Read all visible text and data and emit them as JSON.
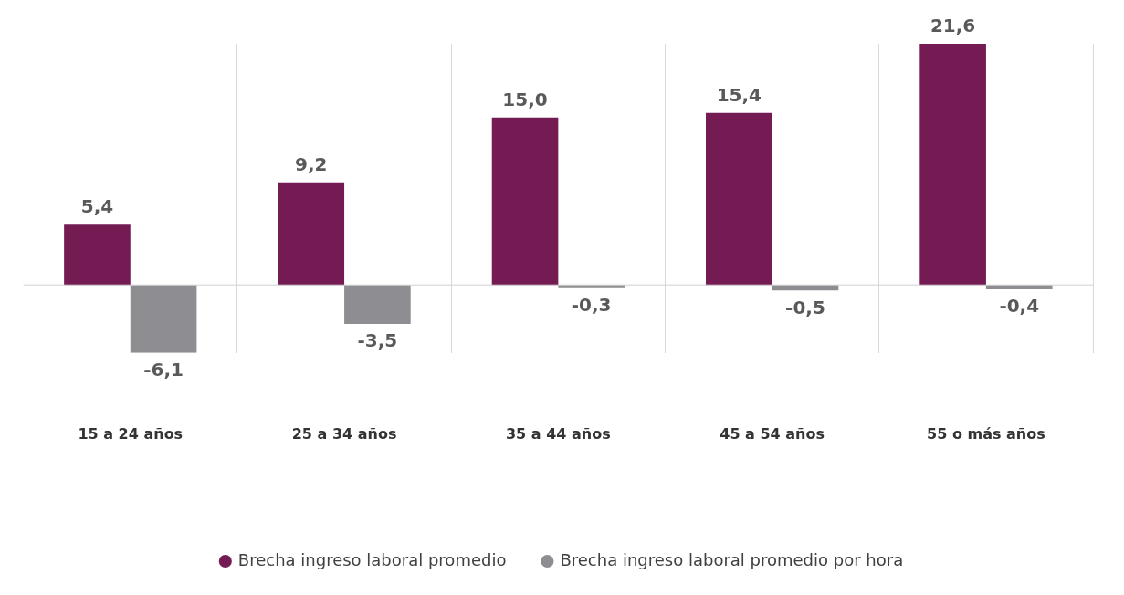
{
  "chart_data": {
    "type": "bar",
    "categories": [
      "15 a 24 años",
      "25 a 34 años",
      "35 a 44 años",
      "45 a 54 años",
      "55 o más años"
    ],
    "series": [
      {
        "name": "Brecha ingreso laboral promedio",
        "color": "#741b53",
        "values": [
          5.4,
          9.2,
          15.0,
          15.4,
          21.6
        ],
        "value_labels": [
          "5,4",
          "9,2",
          "15,0",
          "15,4",
          "21,6"
        ]
      },
      {
        "name": "Brecha ingreso laboral promedio por hora",
        "color": "#8e8e92",
        "values": [
          -6.1,
          -3.5,
          -0.3,
          -0.5,
          -0.4
        ],
        "value_labels": [
          "-6,1",
          "-3,5",
          "-0,3",
          "-0,5",
          "-0,4"
        ]
      }
    ],
    "grid": "x",
    "legend": "bottom",
    "tick_labels": "x"
  }
}
